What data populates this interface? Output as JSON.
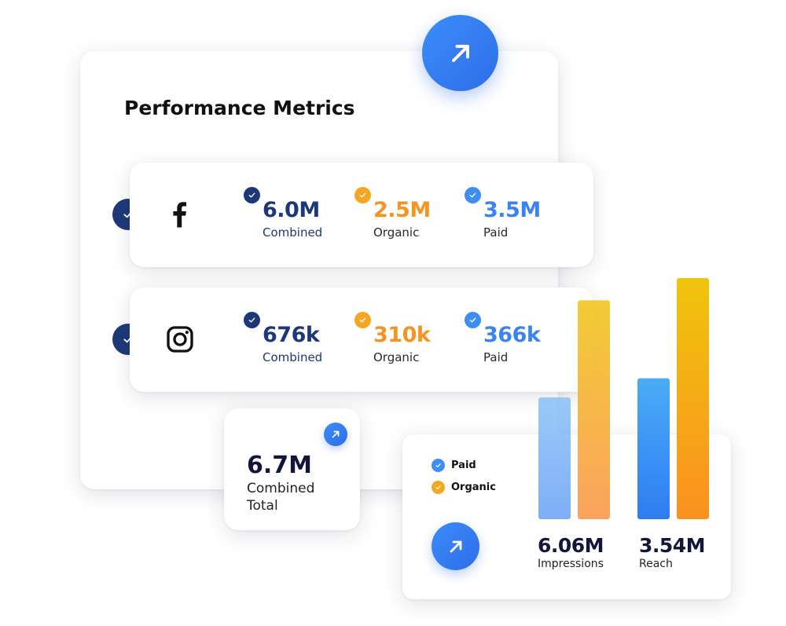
{
  "title": "Performance Metrics",
  "platforms": [
    {
      "name": "facebook",
      "combined": {
        "value": "6.0M",
        "label": "Combined"
      },
      "organic": {
        "value": "2.5M",
        "label": "Organic"
      },
      "paid": {
        "value": "3.5M",
        "label": "Paid"
      }
    },
    {
      "name": "instagram",
      "combined": {
        "value": "676k",
        "label": "Combined"
      },
      "organic": {
        "value": "310k",
        "label": "Organic"
      },
      "paid": {
        "value": "366k",
        "label": "Paid"
      }
    }
  ],
  "total": {
    "value": "6.7M",
    "label": "Combined Total"
  },
  "legend": {
    "paid": "Paid",
    "organic": "Organic"
  },
  "stats": {
    "impressions": {
      "value": "6.06M",
      "label": "Impressions"
    },
    "reach": {
      "value": "3.54M",
      "label": "Reach"
    }
  },
  "colors": {
    "navy": "#1c3878",
    "orange": "#f5a623",
    "blue": "#3f8cf3"
  },
  "icons": [
    "trending-up-arrow-icon",
    "check-icon",
    "facebook-icon",
    "instagram-icon"
  ],
  "chart_data": {
    "type": "bar",
    "categories": [
      "Impressions",
      "Reach"
    ],
    "series": [
      {
        "name": "Paid",
        "values": [
          3.06,
          3.54
        ]
      },
      {
        "name": "Organic",
        "values": [
          5.5,
          6.06
        ]
      }
    ],
    "ylim": [
      0,
      6.06
    ],
    "grid": false
  }
}
